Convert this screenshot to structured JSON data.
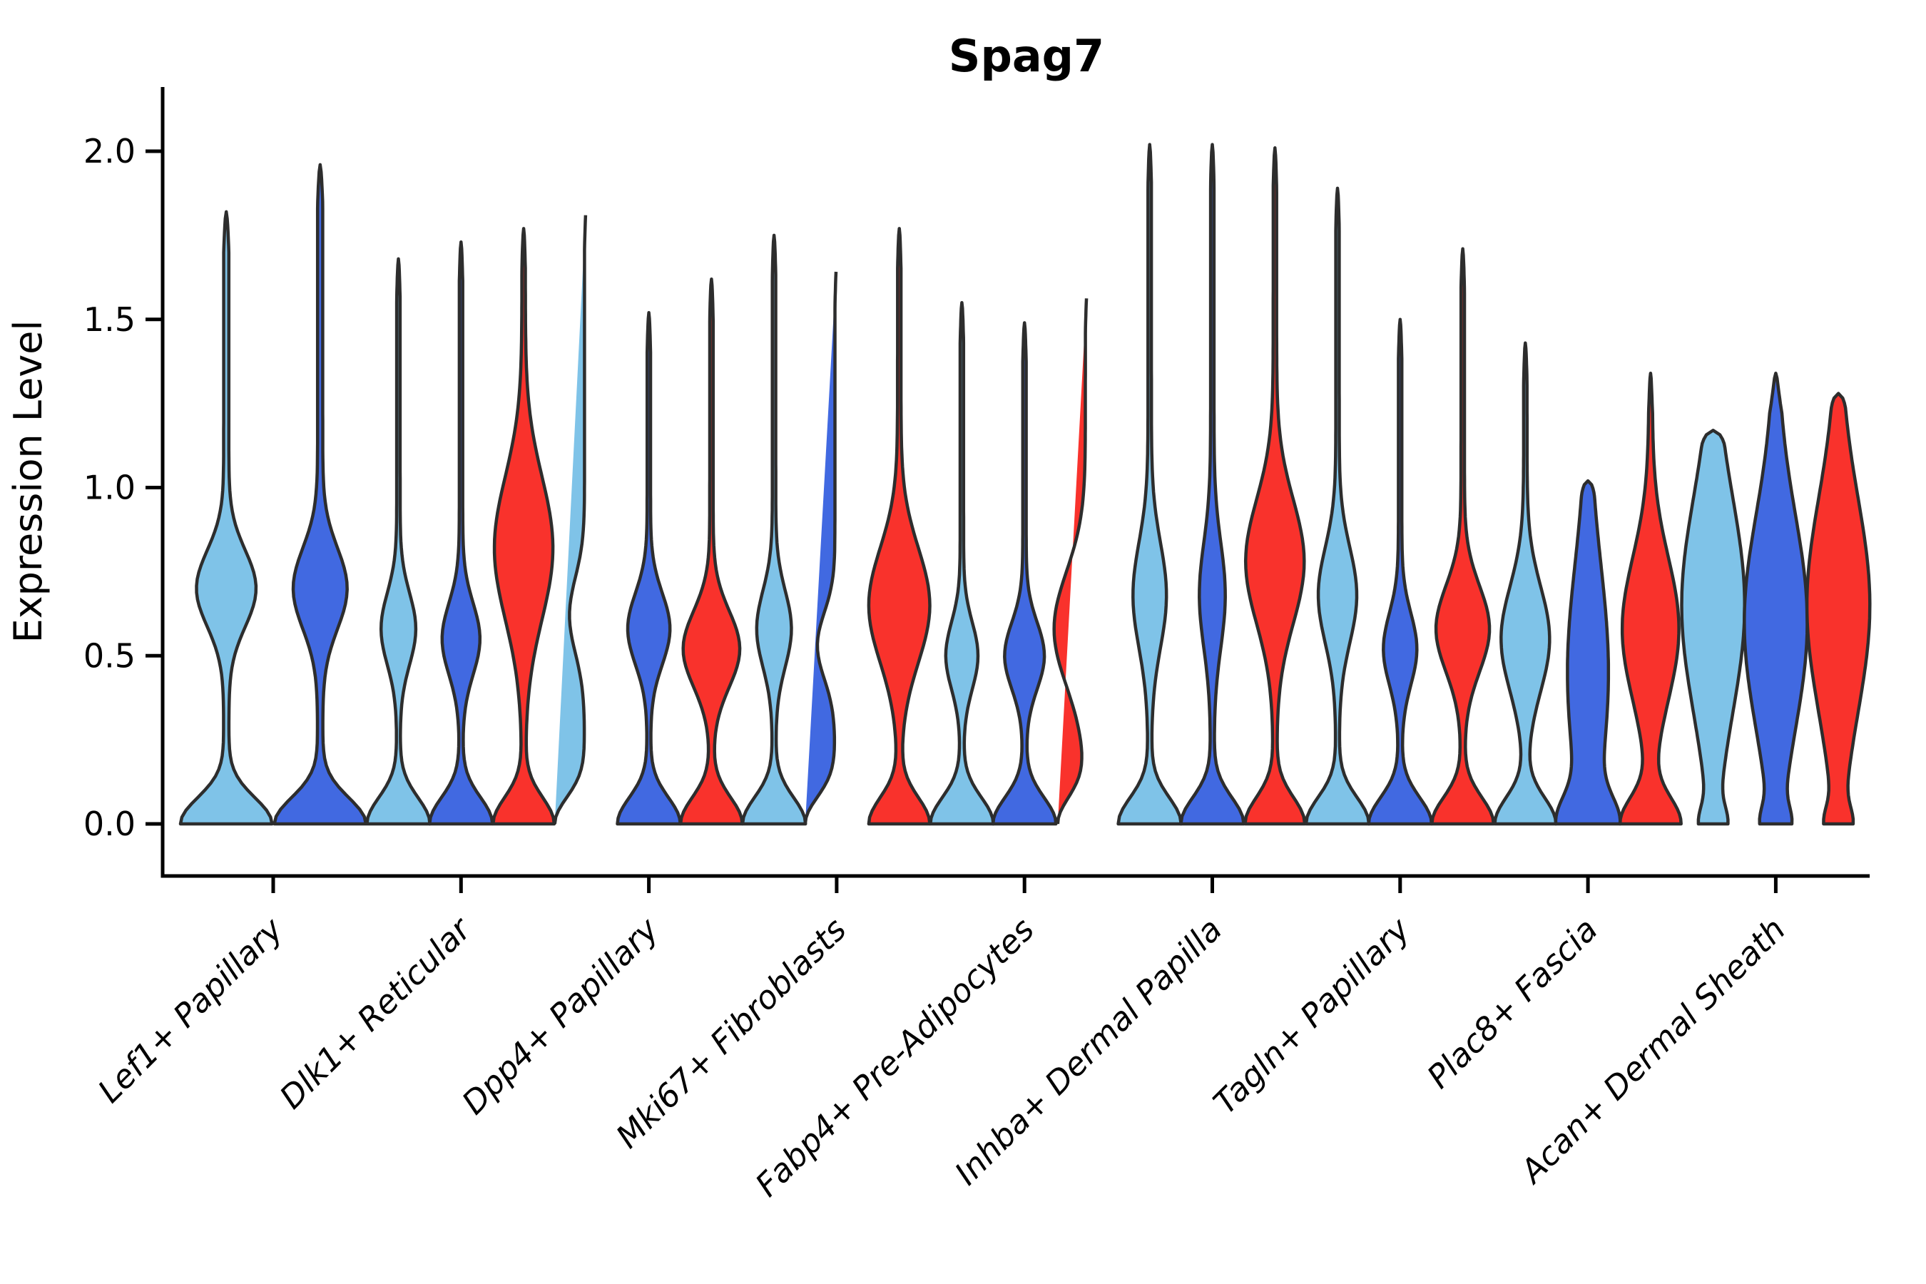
{
  "title": "Spag7",
  "chart_data": {
    "type": "violin",
    "title": "Spag7",
    "xlabel": "",
    "ylabel": "Expression Level",
    "ylim": [
      -0.15,
      2.19
    ],
    "yticks": [
      0.0,
      0.5,
      1.0,
      1.5,
      2.0
    ],
    "ytick_labels": [
      "0.0",
      "0.5",
      "1.0",
      "1.5",
      "2.0"
    ],
    "grid": false,
    "legend": "none",
    "categories": [
      "Lef1+ Papillary",
      "Dlk1+ Reticular",
      "Dpp4+ Papillary",
      "Mki67+ Fibroblasts",
      "Fabp4+ Pre-Adipocytes",
      "Inhba+ Dermal Papilla",
      "Tagln+ Papillary",
      "Plac8+ Fascia",
      "Acan+ Dermal Sheath"
    ],
    "palette": {
      "light_blue": "#7FC3E8",
      "royal_blue": "#4169E1",
      "red": "#F9322C"
    },
    "edge_color": "#2D2D2D",
    "series_order": [
      "light_blue",
      "royal_blue",
      "red"
    ],
    "groups": [
      {
        "category": "Lef1+ Papillary",
        "violins": [
          {
            "color": "light_blue",
            "max": 1.82,
            "base_hw": 0.92,
            "base_sigma": 0.11,
            "bulge_center": 0.7,
            "bulge_hw": 0.58,
            "bulge_sigma": 0.16,
            "blunt_top": false
          },
          {
            "color": "royal_blue",
            "max": 1.96,
            "base_hw": 0.92,
            "base_sigma": 0.11,
            "bulge_center": 0.7,
            "bulge_hw": 0.52,
            "bulge_sigma": 0.17,
            "blunt_top": false
          }
        ]
      },
      {
        "category": "Dlk1+ Reticular",
        "violins": [
          {
            "color": "light_blue",
            "max": 1.68,
            "base_hw": 0.95,
            "base_sigma": 0.11,
            "bulge_center": 0.58,
            "bulge_hw": 0.5,
            "bulge_sigma": 0.15,
            "blunt_top": false
          },
          {
            "color": "royal_blue",
            "max": 1.73,
            "base_hw": 0.95,
            "base_sigma": 0.11,
            "bulge_center": 0.55,
            "bulge_hw": 0.55,
            "bulge_sigma": 0.15,
            "blunt_top": false
          },
          {
            "color": "red",
            "max": 1.77,
            "base_hw": 0.92,
            "base_sigma": 0.11,
            "bulge_center": 0.82,
            "bulge_hw": 0.88,
            "bulge_sigma": 0.3,
            "blunt_top": false
          }
        ]
      },
      {
        "category": "Dpp4+ Papillary",
        "violins": [
          {
            "color": "light_blue",
            "max": 1.83,
            "base_hw": 0.95,
            "base_sigma": 0.11,
            "bulge_center": 0.62,
            "bulge_hw": 0.48,
            "bulge_sigma": 0.16,
            "blunt_top": false
          },
          {
            "color": "royal_blue",
            "max": 1.52,
            "base_hw": 0.95,
            "base_sigma": 0.11,
            "bulge_center": 0.58,
            "bulge_hw": 0.62,
            "bulge_sigma": 0.15,
            "blunt_top": false
          },
          {
            "color": "red",
            "max": 1.62,
            "base_hw": 0.93,
            "base_sigma": 0.11,
            "bulge_center": 0.52,
            "bulge_hw": 0.85,
            "bulge_sigma": 0.16,
            "blunt_top": false
          }
        ]
      },
      {
        "category": "Mki67+ Fibroblasts",
        "violins": [
          {
            "color": "light_blue",
            "max": 1.75,
            "base_hw": 0.95,
            "base_sigma": 0.11,
            "bulge_center": 0.58,
            "bulge_hw": 0.5,
            "bulge_sigma": 0.16,
            "blunt_top": false
          },
          {
            "color": "royal_blue",
            "max": 1.66,
            "base_hw": 0.95,
            "base_sigma": 0.11,
            "bulge_center": 0.53,
            "bulge_hw": 0.56,
            "bulge_sigma": 0.14,
            "blunt_top": false
          },
          {
            "color": "red",
            "max": 1.77,
            "base_hw": 0.92,
            "base_sigma": 0.11,
            "bulge_center": 0.65,
            "bulge_hw": 0.92,
            "bulge_sigma": 0.24,
            "blunt_top": false
          }
        ]
      },
      {
        "category": "Fabp4+ Pre-Adipocytes",
        "violins": [
          {
            "color": "light_blue",
            "max": 1.55,
            "base_hw": 0.95,
            "base_sigma": 0.11,
            "bulge_center": 0.5,
            "bulge_hw": 0.46,
            "bulge_sigma": 0.14,
            "blunt_top": false
          },
          {
            "color": "royal_blue",
            "max": 1.49,
            "base_hw": 0.95,
            "base_sigma": 0.11,
            "bulge_center": 0.5,
            "bulge_hw": 0.58,
            "bulge_sigma": 0.14,
            "blunt_top": false
          },
          {
            "color": "red",
            "max": 1.58,
            "base_hw": 0.88,
            "base_sigma": 0.11,
            "bulge_center": 0.58,
            "bulge_hw": 1.0,
            "bulge_sigma": 0.24,
            "blunt_top": false
          }
        ]
      },
      {
        "category": "Inhba+ Dermal Papilla",
        "violins": [
          {
            "color": "light_blue",
            "max": 2.02,
            "base_hw": 0.95,
            "base_sigma": 0.11,
            "bulge_center": 0.68,
            "bulge_hw": 0.48,
            "bulge_sigma": 0.22,
            "blunt_top": false
          },
          {
            "color": "royal_blue",
            "max": 2.02,
            "base_hw": 0.95,
            "base_sigma": 0.11,
            "bulge_center": 0.68,
            "bulge_hw": 0.36,
            "bulge_sigma": 0.22,
            "blunt_top": false
          },
          {
            "color": "red",
            "max": 2.01,
            "base_hw": 0.9,
            "base_sigma": 0.11,
            "bulge_center": 0.78,
            "bulge_hw": 0.88,
            "bulge_sigma": 0.26,
            "blunt_top": false
          }
        ]
      },
      {
        "category": "Tagln+ Papillary",
        "violins": [
          {
            "color": "light_blue",
            "max": 1.89,
            "base_hw": 0.95,
            "base_sigma": 0.11,
            "bulge_center": 0.68,
            "bulge_hw": 0.56,
            "bulge_sigma": 0.2,
            "blunt_top": false
          },
          {
            "color": "royal_blue",
            "max": 1.5,
            "base_hw": 0.95,
            "base_sigma": 0.11,
            "bulge_center": 0.52,
            "bulge_hw": 0.48,
            "bulge_sigma": 0.15,
            "blunt_top": false
          },
          {
            "color": "red",
            "max": 1.71,
            "base_hw": 0.93,
            "base_sigma": 0.11,
            "bulge_center": 0.58,
            "bulge_hw": 0.8,
            "bulge_sigma": 0.18,
            "blunt_top": false
          }
        ]
      },
      {
        "category": "Plac8+ Fascia",
        "violins": [
          {
            "color": "light_blue",
            "max": 1.43,
            "base_hw": 0.92,
            "base_sigma": 0.11,
            "bulge_center": 0.55,
            "bulge_hw": 0.72,
            "bulge_sigma": 0.22,
            "blunt_top": false
          },
          {
            "color": "royal_blue",
            "max": 1.02,
            "base_hw": 0.75,
            "base_sigma": 0.11,
            "bulge_center": 0.45,
            "bulge_hw": 0.6,
            "bulge_sigma": 0.45,
            "blunt_top": true
          },
          {
            "color": "red",
            "max": 1.34,
            "base_hw": 0.9,
            "base_sigma": 0.11,
            "bulge_center": 0.58,
            "bulge_hw": 0.85,
            "bulge_sigma": 0.3,
            "blunt_top": false
          }
        ]
      },
      {
        "category": "Acan+ Dermal Sheath",
        "violins": [
          {
            "color": "light_blue",
            "max": 1.17,
            "base_hw": 0.3,
            "base_sigma": 0.07,
            "bulge_center": 0.65,
            "bulge_hw": 0.95,
            "bulge_sigma": 0.45,
            "blunt_top": true
          },
          {
            "color": "royal_blue",
            "max": 1.34,
            "base_hw": 0.3,
            "base_sigma": 0.07,
            "bulge_center": 0.6,
            "bulge_hw": 0.95,
            "bulge_sigma": 0.45,
            "blunt_top": false
          },
          {
            "color": "red",
            "max": 1.28,
            "base_hw": 0.3,
            "base_sigma": 0.07,
            "bulge_center": 0.65,
            "bulge_hw": 0.95,
            "bulge_sigma": 0.45,
            "blunt_top": true
          }
        ]
      }
    ]
  }
}
